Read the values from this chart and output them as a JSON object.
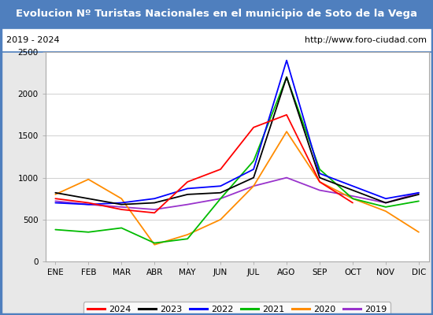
{
  "title": "Evolucion Nº Turistas Nacionales en el municipio de Soto de la Vega",
  "subtitle_left": "2019 - 2024",
  "subtitle_right": "http://www.foro-ciudad.com",
  "title_bg_color": "#4f7fbe",
  "title_text_color": "#ffffff",
  "months": [
    "ENE",
    "FEB",
    "MAR",
    "ABR",
    "MAY",
    "JUN",
    "JUL",
    "AGO",
    "SEP",
    "OCT",
    "NOV",
    "DIC"
  ],
  "ylim": [
    0,
    2500
  ],
  "yticks": [
    0,
    500,
    1000,
    1500,
    2000,
    2500
  ],
  "series": {
    "2024": {
      "color": "#ff0000",
      "values": [
        750,
        700,
        620,
        580,
        950,
        1100,
        1600,
        1750,
        950,
        700,
        null,
        null
      ]
    },
    "2023": {
      "color": "#000000",
      "values": [
        820,
        750,
        680,
        700,
        800,
        820,
        1000,
        2200,
        1000,
        850,
        700,
        800
      ]
    },
    "2022": {
      "color": "#0000ff",
      "values": [
        700,
        680,
        700,
        750,
        870,
        900,
        1100,
        2400,
        1050,
        900,
        750,
        820
      ]
    },
    "2021": {
      "color": "#00bb00",
      "values": [
        380,
        350,
        400,
        220,
        270,
        750,
        1200,
        2200,
        1100,
        750,
        650,
        720
      ]
    },
    "2020": {
      "color": "#ff8c00",
      "values": [
        800,
        980,
        750,
        200,
        320,
        500,
        900,
        1550,
        950,
        750,
        600,
        350
      ]
    },
    "2019": {
      "color": "#9933cc",
      "values": [
        720,
        680,
        650,
        620,
        680,
        750,
        900,
        1000,
        850,
        780,
        700,
        820
      ]
    }
  },
  "legend_order": [
    "2024",
    "2023",
    "2022",
    "2021",
    "2020",
    "2019"
  ],
  "bg_color": "#e8e8e8",
  "plot_bg_color": "#ffffff",
  "grid_color": "#d0d0d0",
  "subtitle_border_color": "#4f7fbe",
  "outer_border_color": "#4f7fbe"
}
